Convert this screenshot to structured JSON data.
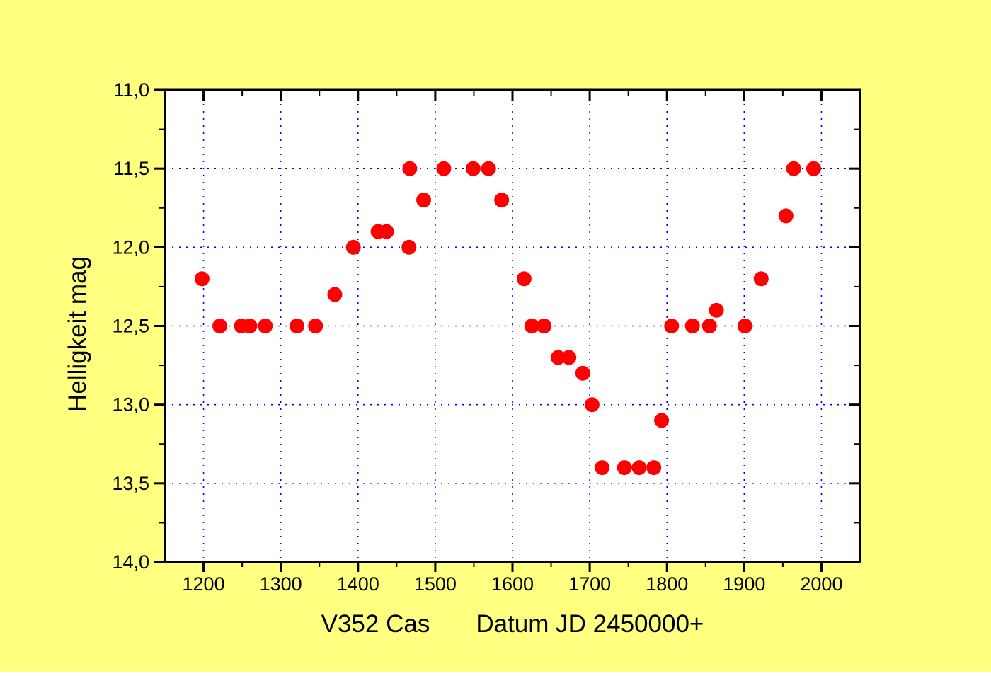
{
  "figure": {
    "page_background": "#ffff80",
    "plot_background": "#ffffff",
    "axis_color": "#000000",
    "grid_color": "#0000ff",
    "point_color": "#ff0000"
  },
  "chart_data": {
    "type": "scatter",
    "title": "V352 Cas",
    "xlabel": "Datum JD 2450000+",
    "ylabel": "Helligkeit mag",
    "x_axis": {
      "min": 1150,
      "max": 2050,
      "major_ticks": [
        1200,
        1300,
        1400,
        1500,
        1600,
        1700,
        1800,
        1900,
        2000
      ],
      "tick_labels": [
        "1200",
        "1300",
        "1400",
        "1500",
        "1600",
        "1700",
        "1800",
        "1900",
        "2000"
      ],
      "minor_ticks": [
        1250,
        1350,
        1450,
        1550,
        1650,
        1750,
        1850,
        1950
      ]
    },
    "y_axis": {
      "min": 11.0,
      "max": 14.0,
      "inverted": true,
      "major_ticks": [
        11.0,
        11.5,
        12.0,
        12.5,
        13.0,
        13.5,
        14.0
      ],
      "tick_labels": [
        "11,0",
        "11,5",
        "12,0",
        "12,5",
        "13,0",
        "13,5",
        "14,0"
      ],
      "minor_ticks": [
        11.25,
        11.75,
        12.25,
        12.75,
        13.25,
        13.75
      ],
      "grid_lines": [
        11.5,
        12.0,
        12.5,
        13.0,
        13.5
      ]
    },
    "grid": true,
    "legend": "none",
    "points": [
      [
        1198,
        12.2
      ],
      [
        1221,
        12.5
      ],
      [
        1249,
        12.5
      ],
      [
        1260,
        12.5
      ],
      [
        1280,
        12.5
      ],
      [
        1321,
        12.5
      ],
      [
        1345,
        12.5
      ],
      [
        1370,
        12.3
      ],
      [
        1394,
        12.0
      ],
      [
        1426,
        11.9
      ],
      [
        1437,
        11.9
      ],
      [
        1466,
        12.0
      ],
      [
        1467,
        11.5
      ],
      [
        1485,
        11.7
      ],
      [
        1511,
        11.5
      ],
      [
        1549,
        11.5
      ],
      [
        1569,
        11.5
      ],
      [
        1586,
        11.7
      ],
      [
        1615,
        12.2
      ],
      [
        1625,
        12.5
      ],
      [
        1641,
        12.5
      ],
      [
        1659,
        12.7
      ],
      [
        1673,
        12.7
      ],
      [
        1691,
        12.8
      ],
      [
        1703,
        13.0
      ],
      [
        1716,
        13.4
      ],
      [
        1745,
        13.4
      ],
      [
        1764,
        13.4
      ],
      [
        1783,
        13.4
      ],
      [
        1793,
        13.1
      ],
      [
        1806,
        12.5
      ],
      [
        1833,
        12.5
      ],
      [
        1855,
        12.5
      ],
      [
        1864,
        12.4
      ],
      [
        1901,
        12.5
      ],
      [
        1922,
        12.2
      ],
      [
        1954,
        11.8
      ],
      [
        1964,
        11.5
      ],
      [
        1990,
        11.5
      ]
    ]
  }
}
